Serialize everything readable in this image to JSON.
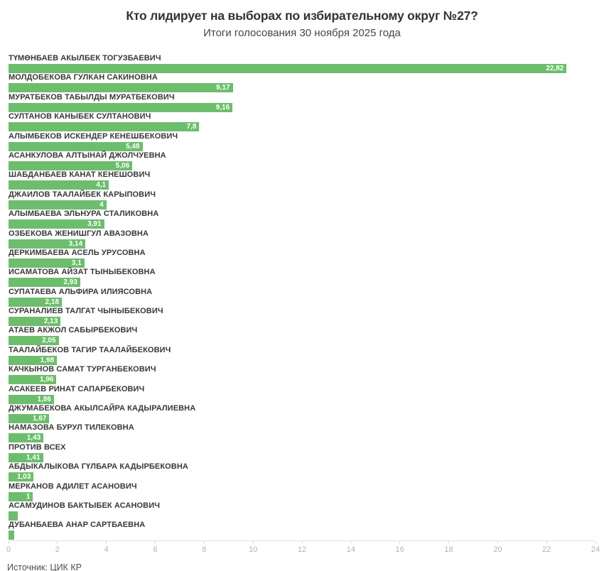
{
  "header": {
    "title": "Кто лидирует на выборах по избирательному округ №27?",
    "subtitle": "Итоги голосования 30 ноября 2025 года"
  },
  "footer": {
    "source_label": "Источник:",
    "source_link_text": "ЦИК КР"
  },
  "colors": {
    "bar": "#6cbe6c",
    "bar_value_text": "#ffffff",
    "candidate_label": "#383838",
    "axis_line": "#e2e2e2",
    "tick_label": "#b3b3b3"
  },
  "chart_data": {
    "type": "bar",
    "orientation": "horizontal",
    "title": "Кто лидирует на выборах по избирательному округ №27?",
    "subtitle": "Итоги голосования 30 ноября 2025 года",
    "xlim": [
      0,
      24
    ],
    "x_ticks": [
      0,
      2,
      4,
      6,
      8,
      10,
      12,
      14,
      16,
      18,
      20,
      22,
      24
    ],
    "grid": false,
    "legend": false,
    "categories": [
      "ТҮМӨНБАЕВ АКЫЛБЕК ТОГУЗБАЕВИЧ",
      "МОЛДОБЕКОВА ГУЛКАН САКИНОВНА",
      "МУРАТБЕКОВ ТАБЫЛДЫ МУРАТБЕКОВИЧ",
      "СУЛТАНОВ КАНЫБЕК СУЛТАНОВИЧ",
      "АЛЫМБЕКОВ ИСКЕНДЕР КЕНЕШБЕКОВИЧ",
      "АСАНКУЛОВА АЛТЫНАЙ ДЖОЛЧУЕВНА",
      "ШАБДАНБАЕВ КАНАТ КЕНЕШОВИЧ",
      "ДЖАИЛОВ ТААЛАЙБЕК КАРЫПОВИЧ",
      "АЛЫМБАЕВА ЭЛЬНУРА СТАЛИКОВНА",
      "ОЗБЕКОВА ЖЕНИШГУЛ АВАЗОВНА",
      "ДЕРКИМБАЕВА АСЕЛЬ УРУСОВНА",
      "ИСАМАТОВА АЙЗАТ ТЫНЫБЕКОВНА",
      "СУПАТАЕВА АЛЬФИРА ИЛИЯСОВНА",
      "СУРАНАЛИЕВ ТАЛГАТ ЧЫНЫБЕКОВИЧ",
      "АТАЕВ АКЖОЛ САБЫРБЕКОВИЧ",
      "ТААЛАЙБЕКОВ ТАГИР ТААЛАЙБЕКОВИЧ",
      "КАЧКЫНОВ САМАТ ТУРГАНБЕКОВИЧ",
      "АСАКЕЕВ РИНАТ САПАРБЕКОВИЧ",
      "ДЖУМАБЕКОВА АКЫЛСАЙРА КАДЫРАЛИЕВНА",
      "НАМАЗОВА БУРУЛ ТИЛЕКОВНА",
      "ПРОТИВ ВСЕХ",
      "АБДЫКАЛЫКОВА ГҮЛБАРА КАДЫРБЕКОВНА",
      "МЕРКАНОВ АДИЛЕТ АСАНОВИЧ",
      "АСАМУДИНОВ БАКТЫБЕК АСАНОВИЧ",
      "ДУБАНБАЕВА АНАР САРТБАЕВНА"
    ],
    "values": [
      22.82,
      9.17,
      9.16,
      7.8,
      5.48,
      5.06,
      4.1,
      4,
      3.91,
      3.14,
      3.1,
      2.93,
      2.18,
      2.13,
      2.05,
      1.98,
      1.96,
      1.86,
      1.67,
      1.43,
      1.41,
      1.03,
      1,
      0.38,
      0.23
    ],
    "value_labels": [
      "22,82",
      "9,17",
      "9,16",
      "7,8",
      "5,48",
      "5,06",
      "4,1",
      "4",
      "3,91",
      "3,14",
      "3,1",
      "2,93",
      "2,18",
      "2,13",
      "2,05",
      "1,98",
      "1,96",
      "1,86",
      "1,67",
      "1,43",
      "1,41",
      "1,03",
      "1",
      "",
      ""
    ]
  }
}
